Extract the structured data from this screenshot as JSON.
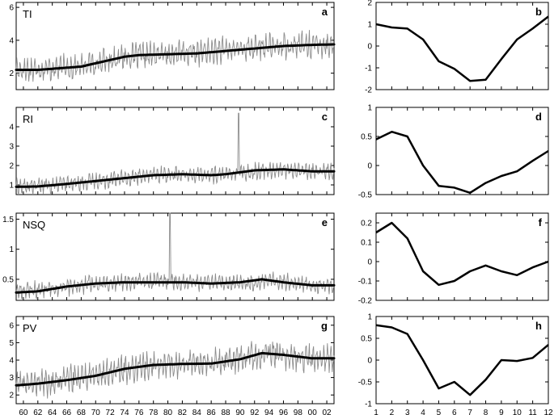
{
  "chart_data": [
    {
      "type": "line",
      "panel_label": "TI",
      "letter": "a",
      "x_tick_labels": [
        "60",
        "62",
        "64",
        "66",
        "68",
        "70",
        "72",
        "74",
        "76",
        "78",
        "80",
        "82",
        "84",
        "86",
        "88",
        "90",
        "92",
        "94",
        "96",
        "98",
        "00",
        "02"
      ],
      "x_range": [
        1959,
        2003
      ],
      "ylim": [
        1,
        6.3
      ],
      "yticks": [
        2,
        4,
        6
      ],
      "series": [
        {
          "role": "monthly",
          "level_x": [
            1959,
            1965,
            1968,
            1971,
            1974,
            1978,
            1982,
            1986,
            1990,
            1994,
            1998,
            2003
          ],
          "level": [
            2.2,
            2.3,
            2.4,
            2.7,
            3.0,
            3.1,
            3.2,
            3.3,
            3.5,
            3.6,
            3.7,
            3.75
          ],
          "amplitude": 1.0
        },
        {
          "role": "trend",
          "x": [
            1959,
            1962,
            1965,
            1968,
            1971,
            1974,
            1976,
            1980,
            1984,
            1988,
            1992,
            1996,
            2000,
            2003
          ],
          "values": [
            2.2,
            2.2,
            2.3,
            2.4,
            2.7,
            3.0,
            3.1,
            3.15,
            3.2,
            3.35,
            3.5,
            3.65,
            3.72,
            3.75
          ]
        }
      ]
    },
    {
      "type": "line",
      "letter": "b",
      "x": [
        1,
        2,
        3,
        4,
        5,
        6,
        7,
        8,
        9,
        10,
        11,
        12
      ],
      "values": [
        1.0,
        0.85,
        0.8,
        0.3,
        -0.7,
        -1.05,
        -1.6,
        -1.55,
        -0.6,
        0.3,
        0.8,
        1.35
      ],
      "ylim": [
        -2,
        2
      ],
      "yticks": [
        -2,
        -1,
        0,
        1,
        2
      ]
    },
    {
      "type": "line",
      "panel_label": "RI",
      "letter": "c",
      "x_tick_labels": [
        "60",
        "62",
        "64",
        "66",
        "68",
        "70",
        "72",
        "74",
        "76",
        "78",
        "80",
        "82",
        "84",
        "86",
        "88",
        "90",
        "92",
        "94",
        "96",
        "98",
        "00",
        "02"
      ],
      "x_range": [
        1959,
        2003
      ],
      "ylim": [
        0.5,
        5
      ],
      "yticks": [
        1,
        2,
        3,
        4
      ],
      "series": [
        {
          "role": "monthly",
          "level_x": [
            1959,
            1965,
            1970,
            1975,
            1980,
            1985,
            1990,
            1994,
            2000,
            2003
          ],
          "level": [
            0.9,
            1.0,
            1.2,
            1.4,
            1.55,
            1.5,
            1.6,
            1.8,
            1.7,
            1.7
          ],
          "amplitude": 0.55,
          "spike": {
            "x": 1989.8,
            "value": 4.7
          }
        },
        {
          "role": "trend",
          "x": [
            1959,
            1962,
            1966,
            1970,
            1974,
            1978,
            1982,
            1986,
            1988,
            1992,
            1996,
            2000,
            2003
          ],
          "values": [
            0.9,
            0.92,
            1.05,
            1.2,
            1.35,
            1.5,
            1.55,
            1.5,
            1.55,
            1.75,
            1.8,
            1.7,
            1.7
          ]
        }
      ]
    },
    {
      "type": "line",
      "letter": "d",
      "x": [
        1,
        2,
        3,
        4,
        5,
        6,
        7,
        8,
        9,
        10,
        11,
        12
      ],
      "values": [
        0.45,
        0.58,
        0.5,
        0.0,
        -0.35,
        -0.38,
        -0.47,
        -0.3,
        -0.18,
        -0.1,
        0.08,
        0.25
      ],
      "ylim": [
        -0.5,
        1
      ],
      "yticks": [
        -0.5,
        0,
        0.5,
        1
      ]
    },
    {
      "type": "line",
      "panel_label": "NSQ",
      "letter": "e",
      "x_tick_labels": [
        "60",
        "62",
        "64",
        "66",
        "68",
        "70",
        "72",
        "74",
        "76",
        "78",
        "80",
        "82",
        "84",
        "86",
        "88",
        "90",
        "92",
        "94",
        "96",
        "98",
        "00",
        "02"
      ],
      "x_range": [
        1959,
        2003
      ],
      "ylim": [
        0.15,
        1.6
      ],
      "yticks": [
        0.5,
        1,
        1.5
      ],
      "ytick_labels": [
        "0.5",
        "1",
        "1.5"
      ],
      "series": [
        {
          "role": "monthly",
          "level_x": [
            1959,
            1965,
            1970,
            1975,
            1980,
            1985,
            1990,
            1995,
            2000,
            2003
          ],
          "level": [
            0.3,
            0.35,
            0.43,
            0.45,
            0.47,
            0.45,
            0.43,
            0.48,
            0.4,
            0.4
          ],
          "amplitude": 0.18,
          "spike": {
            "x": 1980.3,
            "value": 1.6
          }
        },
        {
          "role": "trend",
          "x": [
            1959,
            1962,
            1966,
            1970,
            1974,
            1978,
            1982,
            1986,
            1990,
            1993,
            1996,
            2000,
            2003
          ],
          "values": [
            0.28,
            0.3,
            0.38,
            0.43,
            0.45,
            0.45,
            0.45,
            0.43,
            0.45,
            0.5,
            0.45,
            0.4,
            0.4
          ]
        }
      ]
    },
    {
      "type": "line",
      "letter": "f",
      "x": [
        1,
        2,
        3,
        4,
        5,
        6,
        7,
        8,
        9,
        10,
        11,
        12
      ],
      "values": [
        0.15,
        0.2,
        0.12,
        -0.05,
        -0.12,
        -0.1,
        -0.05,
        -0.02,
        -0.05,
        -0.07,
        -0.03,
        0.0
      ],
      "ylim": [
        -0.2,
        0.25
      ],
      "yticks": [
        -0.2,
        -0.1,
        0,
        0.1,
        0.2
      ]
    },
    {
      "type": "line",
      "panel_label": "PV",
      "letter": "g",
      "x_tick_labels": [
        "60",
        "62",
        "64",
        "66",
        "68",
        "70",
        "72",
        "74",
        "76",
        "78",
        "80",
        "82",
        "84",
        "86",
        "88",
        "90",
        "92",
        "94",
        "96",
        "98",
        "00",
        "02"
      ],
      "x_range": [
        1959,
        2003
      ],
      "ylim": [
        1.5,
        6.5
      ],
      "yticks": [
        2,
        3,
        4,
        5,
        6
      ],
      "series": [
        {
          "role": "monthly",
          "level_x": [
            1959,
            1964,
            1968,
            1972,
            1976,
            1980,
            1984,
            1988,
            1991,
            1994,
            1998,
            2003
          ],
          "level": [
            2.6,
            2.7,
            3.0,
            3.3,
            3.6,
            3.75,
            3.8,
            3.9,
            4.2,
            4.4,
            4.1,
            4.1
          ],
          "amplitude": 1.0
        },
        {
          "role": "trend",
          "x": [
            1959,
            1962,
            1966,
            1970,
            1974,
            1978,
            1982,
            1986,
            1990,
            1993,
            1996,
            2000,
            2003
          ],
          "values": [
            2.55,
            2.65,
            2.85,
            3.1,
            3.5,
            3.72,
            3.78,
            3.8,
            4.05,
            4.4,
            4.3,
            4.1,
            4.1
          ]
        }
      ]
    },
    {
      "type": "line",
      "letter": "h",
      "x": [
        1,
        2,
        3,
        4,
        5,
        6,
        7,
        8,
        9,
        10,
        11,
        12
      ],
      "values": [
        0.8,
        0.75,
        0.6,
        0.0,
        -0.65,
        -0.5,
        -0.8,
        -0.45,
        0.0,
        -0.02,
        0.05,
        0.35
      ],
      "ylim": [
        -1,
        1
      ],
      "yticks": [
        -1,
        -0.5,
        0,
        0.5,
        1
      ],
      "x_tick_labels": [
        "1",
        "2",
        "3",
        "4",
        "5",
        "6",
        "7",
        "8",
        "9",
        "10",
        "11",
        "12"
      ]
    }
  ]
}
